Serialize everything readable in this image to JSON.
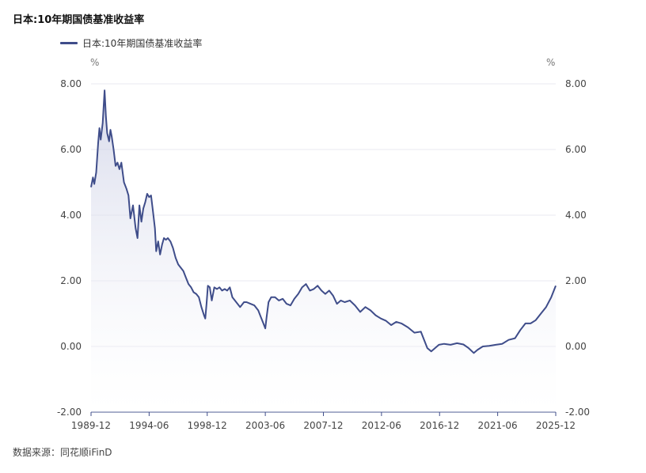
{
  "chart_data": {
    "type": "area",
    "title": "日本:10年期国债基准收益率",
    "legend": [
      "日本:10年期国债基准收益率"
    ],
    "legend_position": "top-left",
    "y_unit_left": "%",
    "y_unit_right": "%",
    "y_ticks": [
      "8.00",
      "6.00",
      "4.00",
      "2.00",
      "0.00",
      "-2.00"
    ],
    "x_ticks": [
      "1989-12",
      "1994-06",
      "1998-12",
      "2003-06",
      "2007-12",
      "2012-06",
      "2016-12",
      "2021-06",
      "2025-12"
    ],
    "ylim": [
      -2,
      8
    ],
    "xlim": [
      1989.95,
      2025.95
    ],
    "grid": true,
    "colors": {
      "line": "#3f4d8a",
      "fill_top": "#c9cde4",
      "grid": "#e8e8f0"
    },
    "series": [
      {
        "name": "日本:10年期国债基准收益率",
        "x": [
          1989.95,
          1990.1,
          1990.2,
          1990.35,
          1990.5,
          1990.6,
          1990.7,
          1990.85,
          1991.0,
          1991.1,
          1991.2,
          1991.35,
          1991.45,
          1991.55,
          1991.7,
          1991.85,
          1992.0,
          1992.15,
          1992.3,
          1992.5,
          1992.7,
          1992.85,
          1993.0,
          1993.2,
          1993.4,
          1993.55,
          1993.7,
          1993.85,
          1994.0,
          1994.15,
          1994.3,
          1994.45,
          1994.6,
          1994.75,
          1994.9,
          1995.0,
          1995.15,
          1995.3,
          1995.45,
          1995.6,
          1995.75,
          1995.9,
          1996.1,
          1996.3,
          1996.5,
          1996.7,
          1996.9,
          1997.1,
          1997.3,
          1997.5,
          1997.7,
          1997.9,
          1998.1,
          1998.3,
          1998.5,
          1998.7,
          1998.8,
          1998.9,
          1999.0,
          1999.15,
          1999.3,
          1999.5,
          1999.7,
          1999.9,
          2000.1,
          2000.3,
          2000.5,
          2000.7,
          2000.9,
          2001.2,
          2001.5,
          2001.8,
          2002.0,
          2002.3,
          2002.6,
          2002.9,
          2003.1,
          2003.3,
          2003.45,
          2003.55,
          2003.7,
          2003.9,
          2004.2,
          2004.5,
          2004.8,
          2005.1,
          2005.4,
          2005.7,
          2006.0,
          2006.3,
          2006.6,
          2006.9,
          2007.2,
          2007.5,
          2007.8,
          2008.1,
          2008.4,
          2008.7,
          2009.0,
          2009.3,
          2009.6,
          2010.0,
          2010.4,
          2010.8,
          2011.2,
          2011.6,
          2012.0,
          2012.4,
          2012.8,
          2013.2,
          2013.6,
          2014.0,
          2014.5,
          2015.0,
          2015.5,
          2016.0,
          2016.3,
          2016.6,
          2016.9,
          2017.3,
          2017.8,
          2018.3,
          2018.8,
          2019.2,
          2019.6,
          2019.9,
          2020.3,
          2020.8,
          2021.3,
          2021.8,
          2022.3,
          2022.8,
          2023.2,
          2023.6,
          2024.0,
          2024.4,
          2024.8,
          2025.2,
          2025.6,
          2025.95
        ],
        "values": [
          4.85,
          5.15,
          4.95,
          5.3,
          6.2,
          6.65,
          6.3,
          6.8,
          7.8,
          7.0,
          6.5,
          6.25,
          6.6,
          6.4,
          6.0,
          5.5,
          5.6,
          5.4,
          5.6,
          5.0,
          4.8,
          4.6,
          3.9,
          4.3,
          3.6,
          3.3,
          4.3,
          3.8,
          4.2,
          4.4,
          4.65,
          4.55,
          4.6,
          4.1,
          3.6,
          2.9,
          3.2,
          2.8,
          3.1,
          3.3,
          3.25,
          3.3,
          3.2,
          3.0,
          2.7,
          2.5,
          2.4,
          2.3,
          2.1,
          1.9,
          1.8,
          1.65,
          1.6,
          1.5,
          1.2,
          0.95,
          0.85,
          1.3,
          1.85,
          1.8,
          1.4,
          1.8,
          1.75,
          1.8,
          1.7,
          1.75,
          1.7,
          1.8,
          1.5,
          1.35,
          1.2,
          1.35,
          1.35,
          1.3,
          1.25,
          1.1,
          0.9,
          0.7,
          0.55,
          0.9,
          1.35,
          1.5,
          1.5,
          1.4,
          1.45,
          1.3,
          1.25,
          1.45,
          1.6,
          1.8,
          1.9,
          1.7,
          1.75,
          1.85,
          1.7,
          1.6,
          1.7,
          1.55,
          1.3,
          1.4,
          1.35,
          1.4,
          1.25,
          1.05,
          1.2,
          1.1,
          0.95,
          0.85,
          0.78,
          0.65,
          0.75,
          0.7,
          0.58,
          0.42,
          0.45,
          -0.05,
          -0.15,
          -0.05,
          0.05,
          0.08,
          0.05,
          0.1,
          0.06,
          -0.05,
          -0.2,
          -0.1,
          0.0,
          0.02,
          0.05,
          0.08,
          0.2,
          0.25,
          0.5,
          0.7,
          0.7,
          0.8,
          1.0,
          1.2,
          1.5,
          1.85
        ]
      }
    ]
  },
  "source": "数据来源：同花顺iFinD"
}
